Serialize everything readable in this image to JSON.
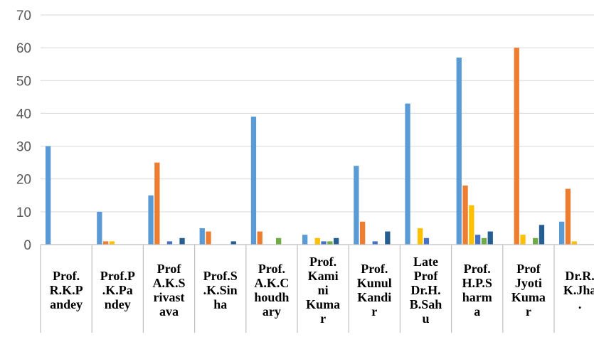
{
  "chart_data": {
    "type": "bar",
    "categories": [
      [
        "Prof.",
        "R.K.P",
        "andey"
      ],
      [
        "Prof.P",
        ".K.Pa",
        "ndey"
      ],
      [
        "Prof",
        "A.K.S",
        "rivast",
        "ava"
      ],
      [
        "Prof.S",
        ".K.Sin",
        "ha"
      ],
      [
        "Prof.",
        "A.K.C",
        "houdh",
        "ary"
      ],
      [
        "Prof.",
        "Kami",
        "ni",
        "Kuma",
        "r"
      ],
      [
        "Prof.",
        "Kunul",
        "Kandi",
        "r"
      ],
      [
        "Late",
        "Prof",
        "Dr.H.",
        "B.Sah",
        "u"
      ],
      [
        "Prof.",
        "H.P.S",
        "harm",
        "a"
      ],
      [
        "Prof",
        "Jyoti",
        "Kuma",
        "r"
      ],
      [
        "Dr.R.",
        "K.Jha",
        "."
      ]
    ],
    "series": [
      {
        "color": "#5B9BD5",
        "values": [
          30,
          10,
          15,
          5,
          39,
          3,
          24,
          43,
          57,
          0,
          7
        ]
      },
      {
        "color": "#ED7D31",
        "values": [
          0,
          1,
          25,
          4,
          4,
          0,
          7,
          0,
          18,
          60,
          17
        ]
      },
      {
        "color": "#FFC000",
        "values": [
          0,
          1,
          0,
          0,
          0,
          2,
          0,
          5,
          12,
          3,
          1
        ]
      },
      {
        "color": "#4472C4",
        "values": [
          0,
          0,
          1,
          0,
          0,
          1,
          1,
          2,
          3,
          0,
          0
        ]
      },
      {
        "color": "#70AD47",
        "values": [
          0,
          0,
          0,
          0,
          2,
          1,
          0,
          0,
          2,
          2,
          0
        ]
      },
      {
        "color": "#255E91",
        "values": [
          0,
          0,
          2,
          1,
          0,
          2,
          4,
          0,
          4,
          6,
          0
        ]
      }
    ],
    "y_ticks": [
      "0",
      "10",
      "20",
      "30",
      "40",
      "50",
      "60",
      "70"
    ],
    "ylim": [
      0,
      70
    ],
    "grid": true,
    "gridline_color": "#D9D9D9",
    "table_line_color": "#BFBFBF"
  }
}
